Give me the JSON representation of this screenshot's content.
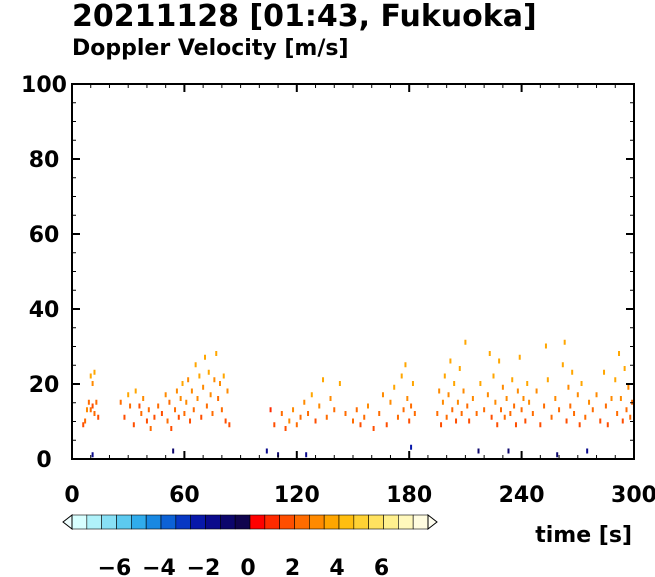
{
  "title": "20211128 [01:43, Fukuoka]",
  "subtitle": "Doppler Velocity [m/s]",
  "chart_data": {
    "type": "heatmap",
    "title": "20211128 [01:43, Fukuoka]",
    "subtitle": "Doppler Velocity [m/s]",
    "xlabel": "time [s]",
    "ylabel": "",
    "xlim": [
      0,
      300
    ],
    "ylim": [
      0,
      100
    ],
    "xticks": [
      0,
      60,
      120,
      180,
      240,
      300
    ],
    "yticks": [
      0,
      20,
      40,
      60,
      80,
      100
    ],
    "grid": false,
    "colorbar": {
      "min": -8,
      "max": 8,
      "ticks": [
        -6,
        -4,
        -2,
        0,
        2,
        4,
        6
      ],
      "tick_labels": [
        "−6",
        "−4",
        "−2",
        "0",
        "2",
        "4",
        "6"
      ],
      "colors": [
        "#d8ffff",
        "#b0f2fa",
        "#88e0f5",
        "#5ccaf0",
        "#30acec",
        "#1888e2",
        "#0c62d6",
        "#0838c4",
        "#0818aa",
        "#0a0a8c",
        "#0c066c",
        "#10044e",
        "#ff0000",
        "#ff2a00",
        "#ff4e00",
        "#ff6c00",
        "#ff8a00",
        "#ffa600",
        "#ffbe10",
        "#ffd234",
        "#ffe260",
        "#fff08e",
        "#fff8bc",
        "#fffce0"
      ]
    },
    "points": [
      [
        7,
        10,
        2.4
      ],
      [
        8,
        13,
        2.8
      ],
      [
        9,
        15,
        2.5
      ],
      [
        10,
        13,
        2.2
      ],
      [
        10,
        22,
        3.5
      ],
      [
        11,
        14,
        1.6
      ],
      [
        11,
        20,
        3.0
      ],
      [
        12,
        12,
        2.0
      ],
      [
        12,
        23,
        3.8
      ],
      [
        13,
        15,
        2.6
      ],
      [
        14,
        11,
        1.8
      ],
      [
        6,
        9,
        1.4
      ],
      [
        11,
        1,
        -1.5
      ],
      [
        26,
        15,
        2.6
      ],
      [
        28,
        11,
        1.9
      ],
      [
        30,
        17,
        3.4
      ],
      [
        31,
        14,
        2.4
      ],
      [
        33,
        9,
        1.7
      ],
      [
        34,
        18,
        3.6
      ],
      [
        36,
        14,
        1.6
      ],
      [
        37,
        12,
        2.2
      ],
      [
        38,
        16,
        2.9
      ],
      [
        40,
        10,
        1.4
      ],
      [
        41,
        13,
        2.5
      ],
      [
        42,
        8,
        2.1
      ],
      [
        44,
        11,
        1.6
      ],
      [
        46,
        14,
        2.6
      ],
      [
        48,
        12,
        1.7
      ],
      [
        50,
        17,
        3.2
      ],
      [
        51,
        10,
        2.1
      ],
      [
        52,
        15,
        2.6
      ],
      [
        53,
        8,
        1.8
      ],
      [
        54,
        2,
        -1.2
      ],
      [
        55,
        13,
        2.4
      ],
      [
        56,
        18,
        3.0
      ],
      [
        57,
        11,
        1.5
      ],
      [
        58,
        16,
        2.7
      ],
      [
        59,
        20,
        3.7
      ],
      [
        60,
        12,
        2.3
      ],
      [
        61,
        15,
        2.8
      ],
      [
        62,
        21,
        3.3
      ],
      [
        63,
        10,
        1.6
      ],
      [
        64,
        18,
        3.1
      ],
      [
        65,
        13,
        2.2
      ],
      [
        66,
        25,
        3.6
      ],
      [
        67,
        16,
        2.7
      ],
      [
        68,
        22,
        3.4
      ],
      [
        69,
        11,
        1.9
      ],
      [
        70,
        19,
        3.0
      ],
      [
        71,
        27,
        3.9
      ],
      [
        72,
        14,
        2.4
      ],
      [
        73,
        23,
        3.5
      ],
      [
        74,
        17,
        2.9
      ],
      [
        75,
        12,
        2.0
      ],
      [
        76,
        21,
        3.2
      ],
      [
        77,
        28,
        3.7
      ],
      [
        78,
        16,
        2.6
      ],
      [
        79,
        20,
        3.3
      ],
      [
        80,
        13,
        2.1
      ],
      [
        81,
        22,
        3.6
      ],
      [
        82,
        10,
        1.8
      ],
      [
        83,
        18,
        2.9
      ],
      [
        84,
        9,
        1.4
      ],
      [
        104,
        2,
        -1.4
      ],
      [
        106,
        13,
        1.2
      ],
      [
        108,
        9,
        1.9
      ],
      [
        110,
        1,
        -1.0
      ],
      [
        112,
        12,
        2.4
      ],
      [
        114,
        8,
        1.6
      ],
      [
        116,
        10,
        2.7
      ],
      [
        118,
        13,
        3.0
      ],
      [
        120,
        9,
        2.0
      ],
      [
        122,
        11,
        2.5
      ],
      [
        124,
        15,
        3.2
      ],
      [
        125,
        1,
        -1.8
      ],
      [
        126,
        12,
        2.3
      ],
      [
        128,
        17,
        3.5
      ],
      [
        130,
        10,
        1.7
      ],
      [
        132,
        14,
        2.8
      ],
      [
        134,
        21,
        3.9
      ],
      [
        136,
        11,
        2.1
      ],
      [
        138,
        16,
        3.0
      ],
      [
        140,
        13,
        2.4
      ],
      [
        143,
        20,
        3.6
      ],
      [
        146,
        12,
        2.2
      ],
      [
        150,
        10,
        2.0
      ],
      [
        152,
        13,
        2.6
      ],
      [
        154,
        9,
        1.6
      ],
      [
        156,
        11,
        2.4
      ],
      [
        158,
        14,
        2.9
      ],
      [
        161,
        8,
        1.5
      ],
      [
        164,
        12,
        2.3
      ],
      [
        166,
        17,
        3.3
      ],
      [
        168,
        9,
        1.8
      ],
      [
        170,
        15,
        2.7
      ],
      [
        172,
        19,
        3.5
      ],
      [
        174,
        11,
        2.1
      ],
      [
        176,
        22,
        3.8
      ],
      [
        177,
        13,
        2.4
      ],
      [
        178,
        25,
        3.9
      ],
      [
        179,
        16,
        2.8
      ],
      [
        180,
        10,
        1.9
      ],
      [
        181,
        14,
        2.6
      ],
      [
        182,
        20,
        3.4
      ],
      [
        183,
        12,
        2.2
      ],
      [
        181,
        3,
        -2.1
      ],
      [
        195,
        12,
        2.5
      ],
      [
        196,
        18,
        3.3
      ],
      [
        197,
        9,
        1.9
      ],
      [
        198,
        15,
        2.8
      ],
      [
        199,
        22,
        3.7
      ],
      [
        200,
        11,
        2.2
      ],
      [
        201,
        17,
        3.1
      ],
      [
        202,
        26,
        3.9
      ],
      [
        203,
        13,
        2.4
      ],
      [
        204,
        20,
        3.5
      ],
      [
        205,
        10,
        1.8
      ],
      [
        206,
        15,
        2.7
      ],
      [
        207,
        24,
        3.6
      ],
      [
        208,
        12,
        2.3
      ],
      [
        209,
        18,
        3.2
      ],
      [
        210,
        31,
        3.8
      ],
      [
        211,
        14,
        2.5
      ],
      [
        212,
        10,
        1.6
      ],
      [
        214,
        16,
        2.9
      ],
      [
        216,
        12,
        2.2
      ],
      [
        217,
        2,
        -1.3
      ],
      [
        218,
        20,
        3.4
      ],
      [
        220,
        13,
        2.4
      ],
      [
        222,
        17,
        3.1
      ],
      [
        223,
        28,
        3.7
      ],
      [
        224,
        11,
        1.9
      ],
      [
        225,
        22,
        3.5
      ],
      [
        226,
        15,
        2.7
      ],
      [
        227,
        9,
        1.7
      ],
      [
        228,
        26,
        3.8
      ],
      [
        229,
        13,
        2.3
      ],
      [
        230,
        19,
        3.2
      ],
      [
        231,
        11,
        2.1
      ],
      [
        232,
        16,
        2.9
      ],
      [
        233,
        2,
        -1.1
      ],
      [
        234,
        12,
        2.2
      ],
      [
        235,
        21,
        3.6
      ],
      [
        236,
        14,
        2.6
      ],
      [
        237,
        9,
        1.8
      ],
      [
        238,
        18,
        3.2
      ],
      [
        239,
        27,
        3.9
      ],
      [
        240,
        13,
        2.3
      ],
      [
        241,
        16,
        2.8
      ],
      [
        242,
        10,
        1.9
      ],
      [
        243,
        20,
        3.4
      ],
      [
        244,
        15,
        2.7
      ],
      [
        246,
        12,
        2.1
      ],
      [
        248,
        18,
        3.1
      ],
      [
        250,
        9,
        1.8
      ],
      [
        252,
        14,
        2.5
      ],
      [
        253,
        30,
        3.8
      ],
      [
        254,
        21,
        3.5
      ],
      [
        256,
        11,
        2.0
      ],
      [
        258,
        16,
        2.9
      ],
      [
        259,
        1,
        -1.0
      ],
      [
        260,
        13,
        2.3
      ],
      [
        262,
        25,
        3.7
      ],
      [
        263,
        31,
        3.9
      ],
      [
        264,
        10,
        1.7
      ],
      [
        265,
        19,
        3.3
      ],
      [
        266,
        14,
        2.5
      ],
      [
        267,
        23,
        3.6
      ],
      [
        268,
        12,
        2.2
      ],
      [
        270,
        17,
        3.0
      ],
      [
        271,
        9,
        1.9
      ],
      [
        272,
        20,
        3.5
      ],
      [
        274,
        11,
        2.0
      ],
      [
        275,
        2,
        -1.4
      ],
      [
        276,
        15,
        2.7
      ],
      [
        278,
        13,
        2.4
      ],
      [
        280,
        17,
        3.0
      ],
      [
        282,
        10,
        1.9
      ],
      [
        284,
        23,
        3.7
      ],
      [
        285,
        14,
        2.5
      ],
      [
        286,
        9,
        1.7
      ],
      [
        288,
        16,
        2.8
      ],
      [
        290,
        21,
        3.4
      ],
      [
        291,
        12,
        2.2
      ],
      [
        292,
        28,
        3.8
      ],
      [
        293,
        16,
        2.9
      ],
      [
        294,
        10,
        1.8
      ],
      [
        295,
        24,
        3.6
      ],
      [
        296,
        13,
        2.3
      ],
      [
        297,
        19,
        3.2
      ],
      [
        298,
        11,
        2.0
      ],
      [
        299,
        15,
        2.6
      ],
      [
        300,
        8,
        1.5
      ]
    ]
  }
}
